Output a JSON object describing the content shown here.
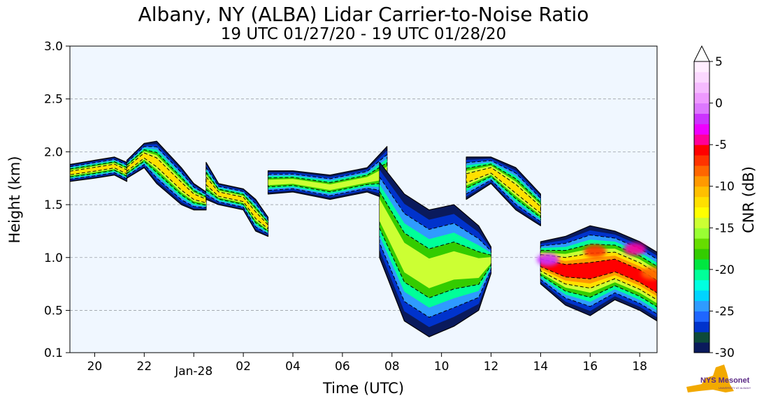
{
  "chart_data": {
    "type": "heatmap",
    "title": "Albany, NY (ALBA) Lidar Carrier-to-Noise Ratio",
    "subtitle": "19 UTC 01/27/20 - 19 UTC 01/28/20",
    "xlabel": "Time (UTC)",
    "ylabel": "Height (km)",
    "x_unit": "hours since 19 UTC 01/27/20",
    "xlim": [
      0,
      23.7
    ],
    "ylim": [
      0.1,
      3.0
    ],
    "x_ticks": [
      {
        "value": 1,
        "label": "20"
      },
      {
        "value": 3,
        "label": "22"
      },
      {
        "value": 5,
        "label": "Jan-28"
      },
      {
        "value": 7,
        "label": "02"
      },
      {
        "value": 9,
        "label": "04"
      },
      {
        "value": 11,
        "label": "06"
      },
      {
        "value": 13,
        "label": "08"
      },
      {
        "value": 15,
        "label": "10"
      },
      {
        "value": 17,
        "label": "12"
      },
      {
        "value": 19,
        "label": "14"
      },
      {
        "value": 21,
        "label": "16"
      },
      {
        "value": 23,
        "label": "18"
      }
    ],
    "y_ticks": [
      {
        "value": 0.1,
        "label": "0.1"
      },
      {
        "value": 0.5,
        "label": "0.5"
      },
      {
        "value": 1.0,
        "label": "1.0"
      },
      {
        "value": 1.5,
        "label": "1.5"
      },
      {
        "value": 2.0,
        "label": "2.0"
      },
      {
        "value": 2.5,
        "label": "2.5"
      },
      {
        "value": 3.0,
        "label": "3.0"
      }
    ],
    "grid": "horizontal dashed",
    "colorbar": {
      "label": "CNR (dB)",
      "range": [
        -30,
        5
      ],
      "extend": "max",
      "tick_labels": [
        "5",
        "0",
        "-5",
        "-10",
        "-15",
        "-20",
        "-25",
        "-30"
      ],
      "tick_values": [
        5,
        0,
        -5,
        -10,
        -15,
        -20,
        -25,
        -30
      ],
      "colors": [
        "#0a1a5c",
        "#0d4a3a",
        "#0033cc",
        "#1f66ff",
        "#2f9bff",
        "#00d4ff",
        "#00ffe0",
        "#00ff99",
        "#00e640",
        "#33cc00",
        "#66dd00",
        "#99ff33",
        "#ccff33",
        "#ffff00",
        "#ffe000",
        "#ffbf00",
        "#ff9900",
        "#ff6600",
        "#ff3300",
        "#ff0000",
        "#ff0099",
        "#ee00ff",
        "#cc33ff",
        "#dd77ff",
        "#ee99ff",
        "#f5bbff",
        "#fbd8ff",
        "#ffeeff"
      ]
    },
    "cloud_layers": [
      {
        "x": [
          0.0,
          1.0,
          1.8,
          2.3
        ],
        "y_top": [
          1.88,
          1.92,
          1.95,
          1.9
        ],
        "y_bottom": [
          1.72,
          1.75,
          1.78,
          1.72
        ],
        "peak_cnr": -11
      },
      {
        "x": [
          2.3,
          3.0,
          3.5,
          4.5,
          5.0,
          5.5
        ],
        "y_top": [
          1.92,
          2.08,
          2.1,
          1.85,
          1.7,
          1.62
        ],
        "y_bottom": [
          1.75,
          1.85,
          1.7,
          1.5,
          1.45,
          1.45
        ],
        "peak_cnr": -12
      },
      {
        "x": [
          5.5,
          6.0,
          7.0,
          7.5,
          8.0
        ],
        "y_top": [
          1.9,
          1.7,
          1.65,
          1.55,
          1.38
        ],
        "y_bottom": [
          1.55,
          1.5,
          1.45,
          1.25,
          1.2
        ],
        "peak_cnr": -12
      },
      {
        "x": [
          8.0,
          9.0,
          10.5,
          12.0,
          12.8
        ],
        "y_top": [
          1.82,
          1.82,
          1.78,
          1.85,
          2.05
        ],
        "y_bottom": [
          1.6,
          1.62,
          1.55,
          1.62,
          1.55
        ],
        "peak_cnr": -13
      },
      {
        "x": [
          12.5,
          13.5,
          14.5,
          15.5,
          16.5,
          17.0
        ],
        "y_top": [
          1.9,
          1.6,
          1.45,
          1.5,
          1.3,
          1.1
        ],
        "y_bottom": [
          1.0,
          0.4,
          0.25,
          0.35,
          0.5,
          0.85
        ],
        "peak_cnr": -14
      },
      {
        "x": [
          16.0,
          17.0,
          18.0,
          19.0
        ],
        "y_top": [
          1.95,
          1.95,
          1.85,
          1.6
        ],
        "y_bottom": [
          1.55,
          1.7,
          1.45,
          1.3
        ],
        "peak_cnr": -12
      },
      {
        "x": [
          19.0,
          20.0,
          21.0,
          22.0,
          23.0,
          23.7
        ],
        "y_top": [
          1.15,
          1.2,
          1.3,
          1.25,
          1.15,
          1.05
        ],
        "y_bottom": [
          0.75,
          0.55,
          0.45,
          0.6,
          0.5,
          0.4
        ],
        "peak_cnr": -6
      }
    ],
    "hot_spots": [
      {
        "x": 19.3,
        "y": 0.98,
        "cnr": -2
      },
      {
        "x": 21.2,
        "y": 1.06,
        "cnr": -7
      },
      {
        "x": 22.8,
        "y": 1.08,
        "cnr": -5
      },
      {
        "x": 23.5,
        "y": 0.85,
        "cnr": -8
      }
    ]
  },
  "logo": {
    "text": "NYS Mesonet",
    "subtext": "UNIVERSITY AT ALBANY"
  }
}
